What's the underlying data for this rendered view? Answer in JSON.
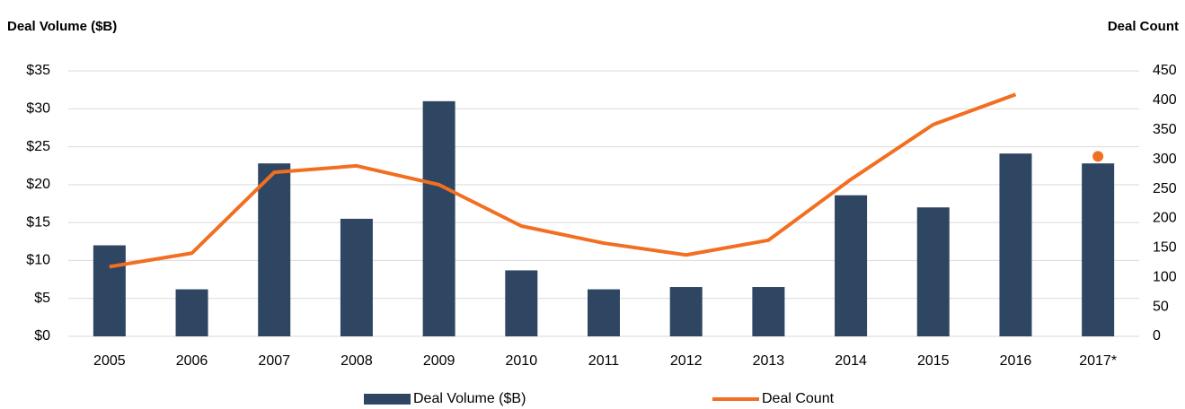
{
  "chart_data": {
    "type": "bar_line",
    "y_title": "Deal Volume ($B)",
    "y2_title": "Deal Count",
    "categories": [
      "2005",
      "2006",
      "2007",
      "2008",
      "2009",
      "2010",
      "2011",
      "2012",
      "2013",
      "2014",
      "2015",
      "2016",
      "2017*"
    ],
    "series": [
      {
        "name": "Deal Volume ($B)",
        "color": "#2e4662",
        "type": "bar",
        "values": [
          12,
          6.2,
          22.8,
          15.5,
          31,
          8.7,
          6.2,
          6.5,
          6.5,
          18.6,
          17,
          24.1,
          22.8
        ]
      },
      {
        "name": "Deal Count",
        "color": "#f26f21",
        "type": "line",
        "axis": "y2",
        "last_point_as_dot": true,
        "values": [
          118,
          141,
          278,
          289,
          257,
          187,
          158,
          138,
          163,
          266,
          359,
          410,
          305
        ]
      }
    ],
    "ylim": [
      0,
      35
    ],
    "yticks": [
      {
        "value": 0,
        "label": "$0"
      },
      {
        "value": 5,
        "label": "$5"
      },
      {
        "value": 10,
        "label": "$10"
      },
      {
        "value": 15,
        "label": "$15"
      },
      {
        "value": 20,
        "label": "$20"
      },
      {
        "value": 25,
        "label": "$25"
      },
      {
        "value": 30,
        "label": "$30"
      },
      {
        "value": 35,
        "label": "$35"
      }
    ],
    "y2lim": [
      0,
      450
    ],
    "y2ticks": [
      0,
      50,
      100,
      150,
      200,
      250,
      300,
      350,
      400,
      450
    ],
    "grid": true,
    "legend": "bottom"
  }
}
